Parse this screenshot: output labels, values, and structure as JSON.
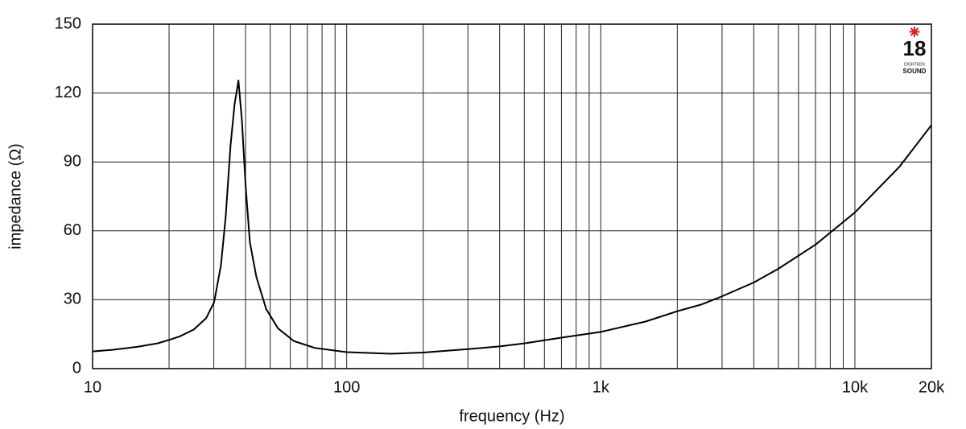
{
  "chart_data": {
    "type": "line",
    "xlabel": "frequency (Hz)",
    "ylabel": "impedance (Ω)",
    "xscale": "log",
    "xlim": [
      10,
      20000
    ],
    "ylim": [
      0,
      150
    ],
    "xticks": [
      10,
      100,
      {
        "value": 1000,
        "label": "1k"
      },
      {
        "value": 10000,
        "label": "10k"
      },
      {
        "value": 20000,
        "label": "20k"
      }
    ],
    "x_minor_grid": [
      20,
      30,
      40,
      50,
      60,
      70,
      80,
      90,
      200,
      300,
      400,
      500,
      600,
      700,
      800,
      900,
      2000,
      3000,
      4000,
      5000,
      6000,
      7000,
      8000,
      9000
    ],
    "yticks": [
      0,
      30,
      60,
      90,
      120,
      150
    ],
    "grid": true,
    "color": "#000000",
    "x": [
      10,
      12,
      15,
      18,
      20,
      22,
      25,
      28,
      30.1,
      32,
      33.4,
      34.9,
      36.2,
      37.5,
      38.7,
      40,
      41.6,
      44.1,
      48.2,
      53.7,
      62,
      75,
      100,
      150,
      200,
      300,
      400,
      500,
      700,
      1000,
      1500,
      2000,
      2500,
      3000,
      4000,
      5000,
      7000,
      10000,
      15000,
      20000
    ],
    "values": [
      7.5,
      8.2,
      9.5,
      11,
      12.5,
      14,
      17,
      22,
      29,
      45,
      66,
      97,
      115,
      125.5,
      108,
      80,
      55,
      40,
      26,
      17.5,
      12,
      9,
      7.2,
      6.5,
      7,
      8.5,
      9.7,
      11,
      13.5,
      16,
      20.5,
      25,
      28,
      31.5,
      37.5,
      43.5,
      54,
      68,
      88,
      106
    ]
  },
  "logo": {
    "number": "18",
    "name": "EIGHTEEN",
    "sub": "SOUND"
  }
}
